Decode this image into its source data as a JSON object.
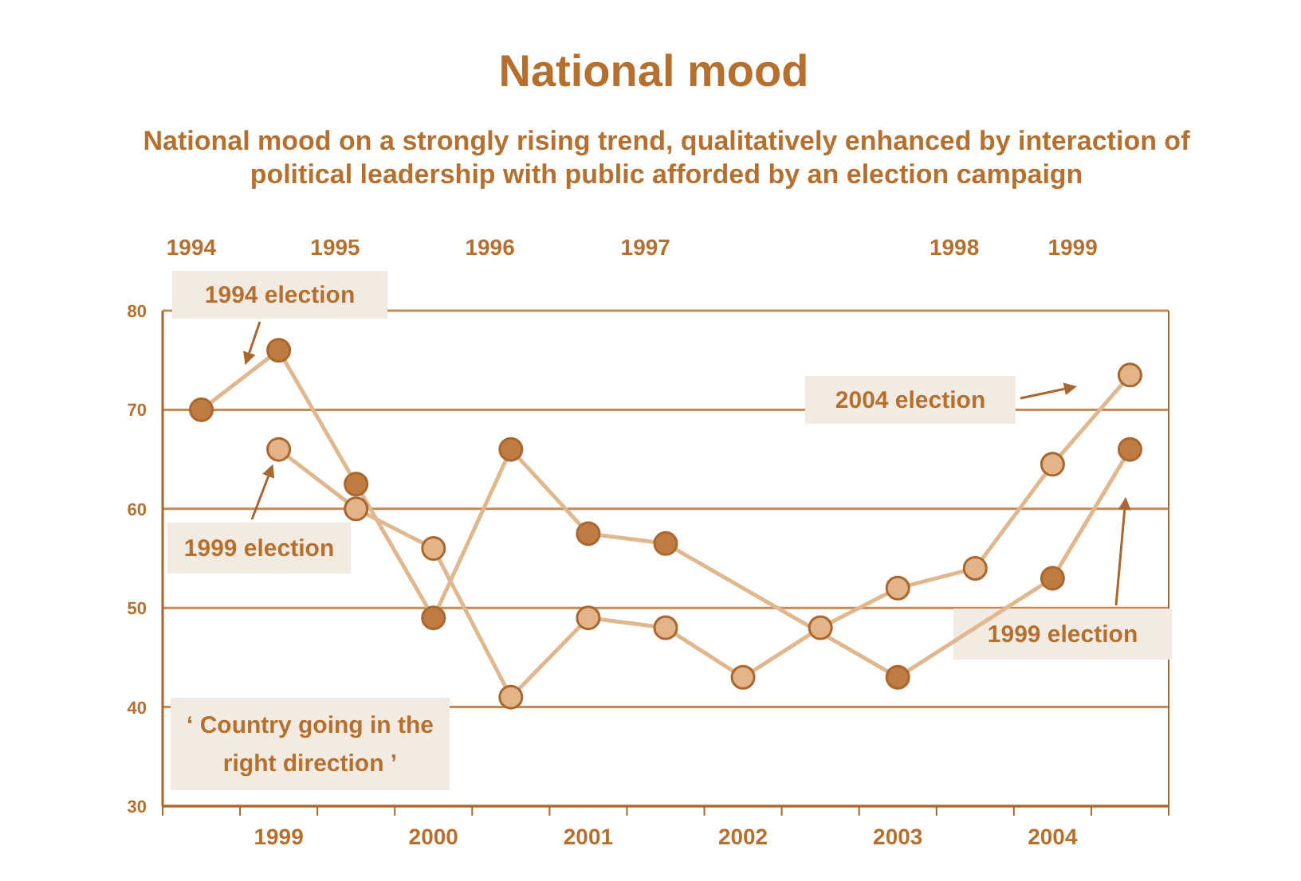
{
  "chart_data": {
    "type": "line",
    "title": "National mood",
    "subtitle": "National mood on a strongly rising trend, qualitatively enhanced by interaction of political leadership with public afforded by an election campaign",
    "categories": [
      null,
      "1999",
      null,
      "2000",
      null,
      "2001",
      null,
      "2002",
      null,
      "2003",
      null,
      "2004",
      null
    ],
    "ylim": [
      30,
      80
    ],
    "yticks": [
      30,
      40,
      50,
      60,
      70,
      80
    ],
    "grid": "y",
    "marker": "circle",
    "line_style": "solid",
    "series": [
      {
        "color": "#c07c40",
        "values": [
          70,
          76,
          62.5,
          49,
          66,
          57.5,
          56.5,
          null,
          null,
          43,
          null,
          53,
          66
        ]
      },
      {
        "color": "#e2b488",
        "values": [
          null,
          66,
          60,
          56,
          41,
          49,
          48,
          43,
          48,
          52,
          54,
          64.5,
          73.5
        ]
      }
    ],
    "annotations": [
      "1994 election",
      "1999 election",
      "2004 election",
      "1999 election",
      "‘ Country going in the right direction ’",
      "1994",
      "1995",
      "1996",
      "1997",
      "1998",
      "1999"
    ]
  }
}
